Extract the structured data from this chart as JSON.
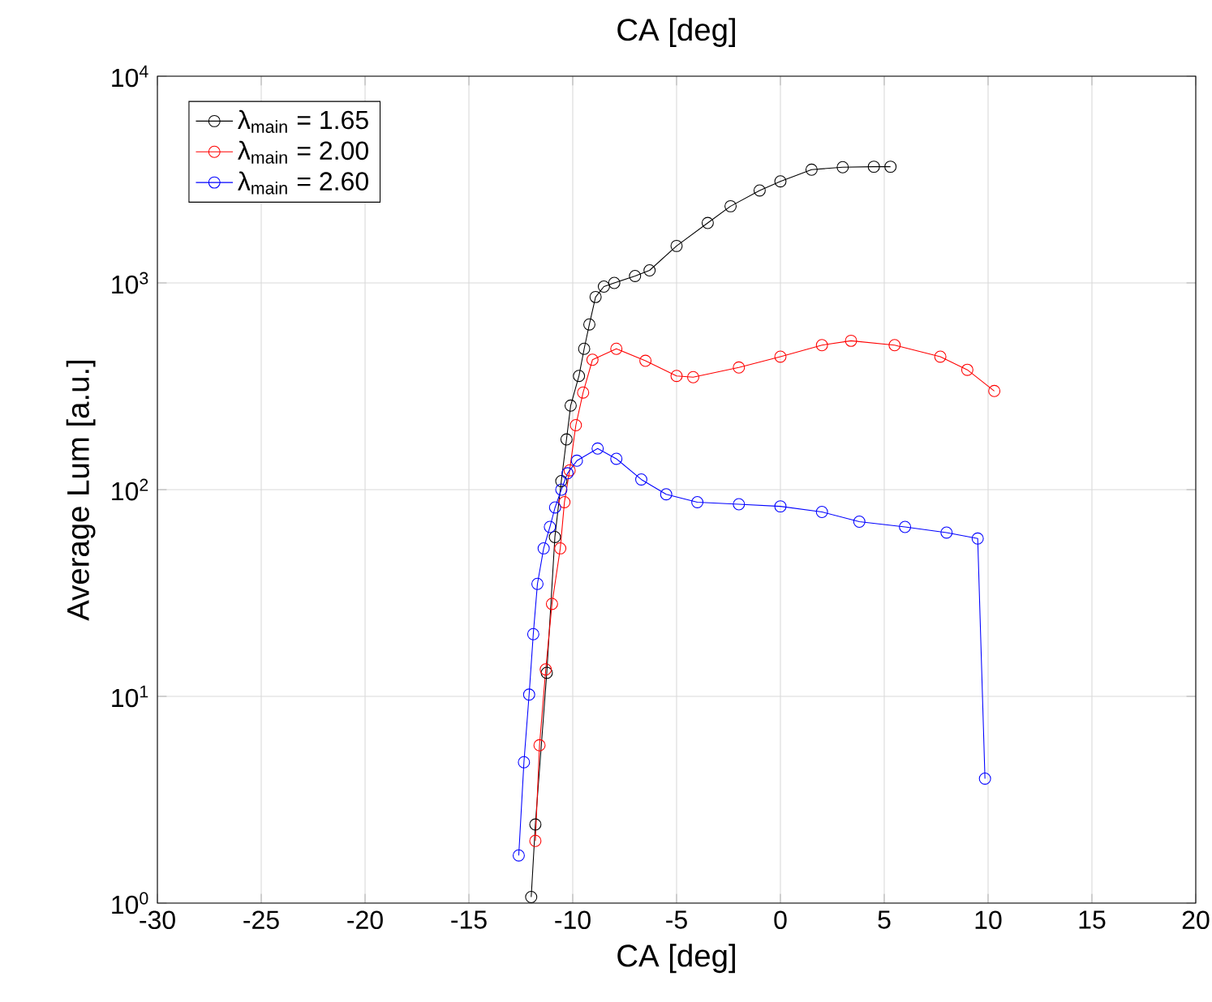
{
  "chart_data": {
    "type": "line",
    "title": "CA [deg]",
    "xlabel": "CA [deg]",
    "ylabel": "Average Lum [a.u.]",
    "log": "y",
    "grid": true,
    "legend": "top left",
    "marker": "circle",
    "line_style": "solid",
    "xlim": [
      -30,
      20
    ],
    "xticks": [
      -30,
      -25,
      -20,
      -15,
      -10,
      -5,
      0,
      5,
      10,
      15,
      20
    ],
    "ylim": [
      1,
      10000
    ],
    "yticks": [
      {
        "value": 1,
        "label": "10$^{0}$"
      },
      {
        "value": 10,
        "label": "10$^{1}$"
      },
      {
        "value": 100,
        "label": "10$^{2}$"
      },
      {
        "value": 1000,
        "label": "10$^{3}$"
      },
      {
        "value": 10000,
        "label": "10$^{4}$"
      }
    ],
    "series": [
      {
        "name": "λ$_{main}$ = 1.65",
        "color": "#000000",
        "x": [
          -12.0,
          -11.8,
          -11.25,
          -10.86,
          -10.55,
          -10.3,
          -10.1,
          -9.7,
          -9.45,
          -9.2,
          -8.9,
          -8.5,
          -8.0,
          -7.0,
          -6.3,
          -5.0,
          -3.5,
          -2.4,
          -1.0,
          0,
          1.5,
          3.0,
          4.5,
          5.3
        ],
        "values": [
          1.07,
          2.4,
          13,
          59,
          110,
          175,
          255,
          355,
          480,
          630,
          855,
          960,
          1000,
          1080,
          1150,
          1510,
          1950,
          2350,
          2800,
          3100,
          3530,
          3630,
          3650,
          3650
        ]
      },
      {
        "name": "λ$_{main}$ = 2.00",
        "color": "#ff0000",
        "x": [
          -11.8,
          -11.6,
          -11.3,
          -11.0,
          -10.6,
          -10.4,
          -10.15,
          -9.85,
          -9.5,
          -9.05,
          -7.9,
          -6.5,
          -5.0,
          -4.2,
          -2.0,
          0,
          2.0,
          3.4,
          5.5,
          7.7,
          9.0,
          10.3
        ],
        "values": [
          2.0,
          5.8,
          13.5,
          28,
          52,
          87,
          124,
          205,
          295,
          425,
          480,
          420,
          355,
          350,
          390,
          440,
          500,
          525,
          500,
          440,
          380,
          300
        ]
      },
      {
        "name": "λ$_{main}$ = 2.60",
        "color": "#0000ff",
        "x": [
          -12.6,
          -12.35,
          -12.1,
          -11.9,
          -11.7,
          -11.4,
          -11.1,
          -10.85,
          -10.55,
          -10.25,
          -9.8,
          -8.8,
          -7.9,
          -6.7,
          -5.5,
          -4.0,
          -2.0,
          0,
          2.0,
          3.8,
          6.0,
          8.0,
          9.5,
          9.85
        ],
        "values": [
          1.7,
          4.8,
          10.2,
          20,
          35,
          52,
          66,
          82,
          100,
          120,
          138,
          158,
          141,
          112,
          95,
          87,
          85,
          83,
          78,
          70,
          66,
          62,
          58,
          4.0
        ]
      }
    ]
  }
}
